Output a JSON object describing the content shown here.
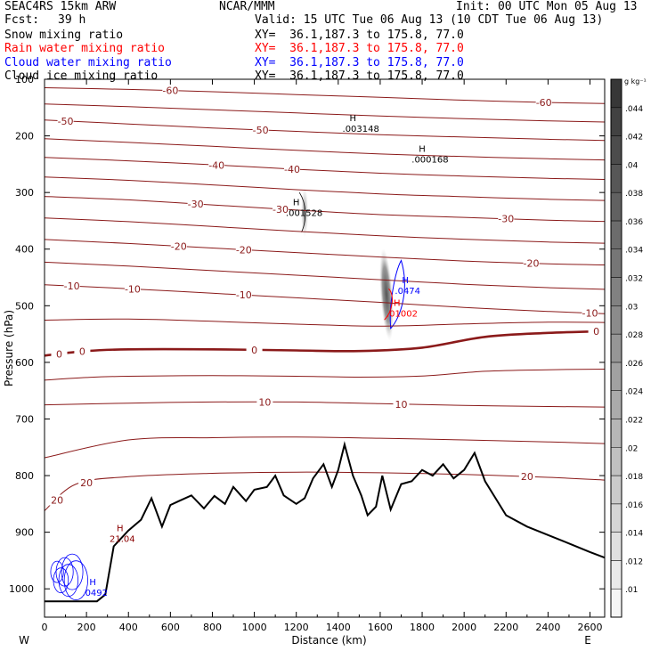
{
  "header": {
    "model": "SEAC4RS 15km ARW",
    "center": "NCAR/MMM",
    "init": "Init: 00 UTC Mon 05 Aug 13",
    "fcst_label": "Fcst:",
    "fcst_value": "39 h",
    "valid": "Valid: 15 UTC Tue 06 Aug 13 (10 CDT Tue 06 Aug 13)",
    "fields": [
      {
        "name": "Snow mixing ratio",
        "xy": "XY=  36.1,187.3 to 175.8, 77.0",
        "color": "#000000"
      },
      {
        "name": "Rain water mixing ratio",
        "xy": "XY=  36.1,187.3 to 175.8, 77.0",
        "color": "#ff0000"
      },
      {
        "name": "Cloud water mixing ratio",
        "xy": "XY=  36.1,187.3 to 175.8, 77.0",
        "color": "#0000ff"
      },
      {
        "name": "Cloud ice mixing ratio",
        "xy": "XY=  36.1,187.3 to 175.8, 77.0",
        "color": "#000000"
      }
    ]
  },
  "chart_data": {
    "type": "cross-section",
    "xlabel": "Distance (km)",
    "ylabel": "Pressure (hPa)",
    "xlim": [
      0,
      2670
    ],
    "ylim": [
      1050,
      100
    ],
    "x_ticks": [
      0,
      200,
      400,
      600,
      800,
      1000,
      1200,
      1400,
      1600,
      1800,
      2000,
      2200,
      2400,
      2600
    ],
    "y_ticks": [
      200,
      300,
      400,
      500,
      600,
      700,
      800,
      900,
      1000
    ],
    "y_top_label": "100",
    "direction_left": "W",
    "direction_right": "E",
    "colorbar": {
      "unit": "g kg⁻¹",
      "ticks": [
        ".01",
        ".012",
        ".014",
        ".016",
        ".018",
        ".02",
        ".022",
        ".024",
        ".026",
        ".028",
        ".03",
        ".032",
        ".034",
        ".036",
        ".038",
        ".04",
        ".042",
        ".044"
      ]
    },
    "temperature_contours_c": [
      {
        "label": "-60",
        "pts": [
          [
            0,
            115
          ],
          [
            400,
            118
          ],
          [
            800,
            122
          ],
          [
            1200,
            127
          ],
          [
            1600,
            132
          ],
          [
            2000,
            137
          ],
          [
            2400,
            141
          ],
          [
            2670,
            143
          ]
        ]
      },
      {
        "label": "-50",
        "pts": [
          [
            0,
            172
          ],
          [
            400,
            179
          ],
          [
            800,
            186
          ],
          [
            1200,
            192
          ],
          [
            1600,
            198
          ],
          [
            2000,
            202
          ],
          [
            2400,
            206
          ],
          [
            2670,
            208
          ]
        ]
      },
      {
        "label": "-40",
        "pts": [
          [
            0,
            238
          ],
          [
            400,
            244
          ],
          [
            800,
            251
          ],
          [
            1200,
            259
          ],
          [
            1600,
            266
          ],
          [
            2000,
            271
          ],
          [
            2400,
            275
          ],
          [
            2670,
            277
          ]
        ]
      },
      {
        "label": "-30",
        "pts": [
          [
            0,
            307
          ],
          [
            400,
            313
          ],
          [
            800,
            322
          ],
          [
            1200,
            331
          ],
          [
            1600,
            339
          ],
          [
            2000,
            344
          ],
          [
            2400,
            349
          ],
          [
            2670,
            351
          ]
        ]
      },
      {
        "label": "-20",
        "pts": [
          [
            0,
            383
          ],
          [
            400,
            390
          ],
          [
            800,
            398
          ],
          [
            1200,
            406
          ],
          [
            1600,
            414
          ],
          [
            2000,
            421
          ],
          [
            2400,
            426
          ],
          [
            2670,
            428
          ]
        ]
      },
      {
        "label": "-10",
        "pts": [
          [
            0,
            463
          ],
          [
            400,
            470
          ],
          [
            800,
            478
          ],
          [
            1200,
            486
          ],
          [
            1600,
            494
          ],
          [
            2000,
            503
          ],
          [
            2400,
            510
          ],
          [
            2670,
            514
          ]
        ]
      },
      {
        "label": "0",
        "pts": [
          [
            0,
            588
          ],
          [
            200,
            580
          ],
          [
            400,
            577
          ],
          [
            800,
            577
          ],
          [
            1200,
            579
          ],
          [
            1500,
            580
          ],
          [
            1800,
            574
          ],
          [
            2100,
            555
          ],
          [
            2400,
            548
          ],
          [
            2670,
            545
          ]
        ]
      },
      {
        "label": "10",
        "pts": [
          [
            0,
            675
          ],
          [
            400,
            672
          ],
          [
            800,
            670
          ],
          [
            1200,
            670
          ],
          [
            1600,
            673
          ],
          [
            2000,
            676
          ],
          [
            2400,
            678
          ],
          [
            2670,
            679
          ]
        ]
      },
      {
        "label": "20",
        "pts": [
          [
            0,
            862
          ],
          [
            150,
            815
          ],
          [
            400,
            802
          ],
          [
            800,
            796
          ],
          [
            1200,
            794
          ],
          [
            1600,
            795
          ],
          [
            2000,
            798
          ],
          [
            2400,
            803
          ],
          [
            2670,
            808
          ]
        ]
      }
    ],
    "terrain_hpa": [
      [
        0,
        1022
      ],
      [
        250,
        1022
      ],
      [
        290,
        1010
      ],
      [
        330,
        925
      ],
      [
        400,
        897
      ],
      [
        460,
        878
      ],
      [
        510,
        840
      ],
      [
        560,
        890
      ],
      [
        600,
        852
      ],
      [
        640,
        845
      ],
      [
        700,
        835
      ],
      [
        760,
        858
      ],
      [
        810,
        836
      ],
      [
        860,
        850
      ],
      [
        900,
        820
      ],
      [
        960,
        845
      ],
      [
        1000,
        825
      ],
      [
        1060,
        820
      ],
      [
        1100,
        800
      ],
      [
        1140,
        835
      ],
      [
        1200,
        850
      ],
      [
        1240,
        840
      ],
      [
        1280,
        805
      ],
      [
        1330,
        780
      ],
      [
        1370,
        820
      ],
      [
        1400,
        790
      ],
      [
        1430,
        745
      ],
      [
        1470,
        800
      ],
      [
        1510,
        835
      ],
      [
        1540,
        870
      ],
      [
        1580,
        855
      ],
      [
        1610,
        800
      ],
      [
        1650,
        860
      ],
      [
        1700,
        815
      ],
      [
        1750,
        810
      ],
      [
        1800,
        790
      ],
      [
        1850,
        800
      ],
      [
        1900,
        780
      ],
      [
        1950,
        805
      ],
      [
        2000,
        790
      ],
      [
        2050,
        760
      ],
      [
        2100,
        810
      ],
      [
        2150,
        840
      ],
      [
        2200,
        870
      ],
      [
        2300,
        890
      ],
      [
        2400,
        905
      ],
      [
        2500,
        920
      ],
      [
        2600,
        935
      ],
      [
        2670,
        945
      ]
    ],
    "extrema": [
      {
        "label": "H",
        "value": ".003148",
        "x": 1420,
        "p": 183,
        "color": "#000000"
      },
      {
        "label": "H",
        "value": ".000168",
        "x": 1750,
        "p": 238,
        "color": "#000000"
      },
      {
        "label": "H",
        "value": ".001528",
        "x": 1150,
        "p": 332,
        "color": "#000000"
      },
      {
        "label": "H",
        "value": ".0474",
        "x": 1670,
        "p": 470,
        "color": "#0000ff"
      },
      {
        "label": "H",
        "value": ".01002",
        "x": 1630,
        "p": 510,
        "color": "#ff0000"
      },
      {
        "label": "H",
        "value": "21.04",
        "x": 310,
        "p": 908,
        "color": "#8b0000"
      },
      {
        "label": "H",
        "value": ".0492",
        "x": 180,
        "p": 1003,
        "color": "#0000ff"
      }
    ]
  }
}
